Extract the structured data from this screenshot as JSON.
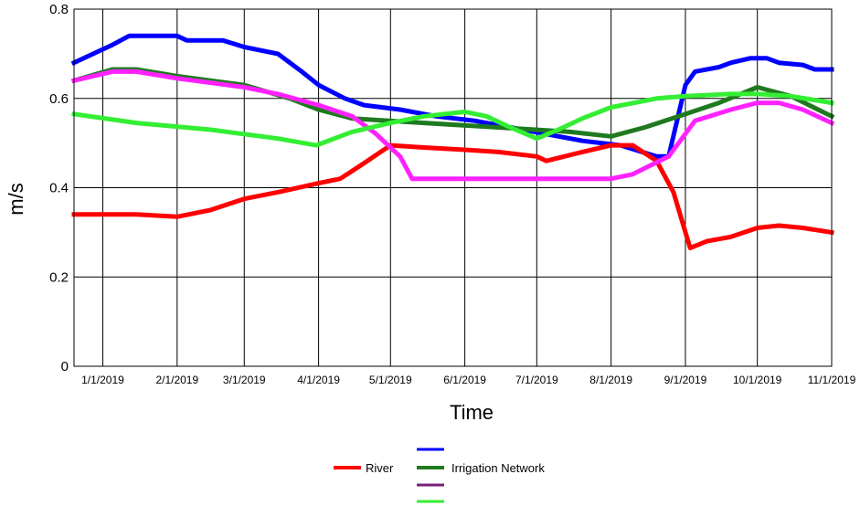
{
  "chart_data": {
    "type": "line",
    "xlabel": "Time",
    "ylabel": "m/s",
    "ylim": [
      0,
      0.8
    ],
    "xlim": [
      "2018-12-20",
      "2019-11-01"
    ],
    "yticks": [
      "0",
      "0.2",
      "0.4",
      "0.6",
      "0.8"
    ],
    "xticks": [
      "1/1/2019",
      "2/1/2019",
      "3/1/2019",
      "4/1/2019",
      "5/1/2019",
      "6/1/2019",
      "7/1/2019",
      "8/1/2019",
      "9/1/2019",
      "10/1/2019",
      "11/1/2019"
    ],
    "grid": true,
    "legend": {
      "placement": "bottom",
      "labels": [
        "River",
        "Irrigation Network"
      ]
    },
    "series": [
      {
        "color": "#0000ff",
        "points": [
          [
            "2018-12-20",
            0.68
          ],
          [
            "2018-12-28",
            0.7
          ],
          [
            "2019-01-05",
            0.72
          ],
          [
            "2019-01-12",
            0.74
          ],
          [
            "2019-02-01",
            0.74
          ],
          [
            "2019-02-05",
            0.73
          ],
          [
            "2019-02-20",
            0.73
          ],
          [
            "2019-03-01",
            0.715
          ],
          [
            "2019-03-15",
            0.7
          ],
          [
            "2019-03-25",
            0.66
          ],
          [
            "2019-04-01",
            0.63
          ],
          [
            "2019-04-12",
            0.6
          ],
          [
            "2019-04-20",
            0.585
          ],
          [
            "2019-05-05",
            0.575
          ],
          [
            "2019-05-20",
            0.56
          ],
          [
            "2019-06-05",
            0.55
          ],
          [
            "2019-06-20",
            0.535
          ],
          [
            "2019-07-05",
            0.52
          ],
          [
            "2019-07-20",
            0.505
          ],
          [
            "2019-08-05",
            0.495
          ],
          [
            "2019-08-20",
            0.47
          ],
          [
            "2019-08-25",
            0.47
          ],
          [
            "2019-09-01",
            0.63
          ],
          [
            "2019-09-05",
            0.66
          ],
          [
            "2019-09-15",
            0.67
          ],
          [
            "2019-09-20",
            0.68
          ],
          [
            "2019-09-28",
            0.69
          ],
          [
            "2019-10-05",
            0.69
          ],
          [
            "2019-10-10",
            0.68
          ],
          [
            "2019-10-20",
            0.675
          ],
          [
            "2019-10-25",
            0.665
          ],
          [
            "2019-11-01",
            0.665
          ]
        ]
      },
      {
        "color": "#ff0000",
        "points": [
          [
            "2018-12-20",
            0.34
          ],
          [
            "2019-01-01",
            0.34
          ],
          [
            "2019-01-15",
            0.34
          ],
          [
            "2019-02-01",
            0.335
          ],
          [
            "2019-02-15",
            0.35
          ],
          [
            "2019-03-01",
            0.375
          ],
          [
            "2019-03-15",
            0.39
          ],
          [
            "2019-04-01",
            0.41
          ],
          [
            "2019-04-10",
            0.42
          ],
          [
            "2019-04-20",
            0.455
          ],
          [
            "2019-05-01",
            0.495
          ],
          [
            "2019-05-15",
            0.49
          ],
          [
            "2019-06-01",
            0.485
          ],
          [
            "2019-06-15",
            0.48
          ],
          [
            "2019-07-01",
            0.47
          ],
          [
            "2019-07-05",
            0.46
          ],
          [
            "2019-07-20",
            0.48
          ],
          [
            "2019-08-01",
            0.495
          ],
          [
            "2019-08-10",
            0.495
          ],
          [
            "2019-08-20",
            0.46
          ],
          [
            "2019-08-27",
            0.39
          ],
          [
            "2019-09-01",
            0.3
          ],
          [
            "2019-09-03",
            0.265
          ],
          [
            "2019-09-10",
            0.28
          ],
          [
            "2019-09-20",
            0.29
          ],
          [
            "2019-10-01",
            0.31
          ],
          [
            "2019-10-10",
            0.315
          ],
          [
            "2019-10-20",
            0.31
          ],
          [
            "2019-11-01",
            0.3
          ]
        ]
      },
      {
        "color": "#1f7a1f",
        "points": [
          [
            "2018-12-20",
            0.64
          ],
          [
            "2019-01-05",
            0.665
          ],
          [
            "2019-01-15",
            0.665
          ],
          [
            "2019-02-01",
            0.65
          ],
          [
            "2019-03-01",
            0.63
          ],
          [
            "2019-03-20",
            0.6
          ],
          [
            "2019-04-01",
            0.575
          ],
          [
            "2019-04-15",
            0.555
          ],
          [
            "2019-05-15",
            0.545
          ],
          [
            "2019-06-15",
            0.535
          ],
          [
            "2019-07-15",
            0.525
          ],
          [
            "2019-08-01",
            0.515
          ],
          [
            "2019-08-15",
            0.535
          ],
          [
            "2019-09-01",
            0.565
          ],
          [
            "2019-09-15",
            0.59
          ],
          [
            "2019-10-01",
            0.625
          ],
          [
            "2019-10-15",
            0.605
          ],
          [
            "2019-11-01",
            0.56
          ]
        ]
      },
      {
        "color": "#ff22ff",
        "points": [
          [
            "2018-12-20",
            0.64
          ],
          [
            "2019-01-05",
            0.66
          ],
          [
            "2019-01-15",
            0.66
          ],
          [
            "2019-02-01",
            0.645
          ],
          [
            "2019-03-01",
            0.625
          ],
          [
            "2019-03-15",
            0.61
          ],
          [
            "2019-04-01",
            0.585
          ],
          [
            "2019-04-15",
            0.56
          ],
          [
            "2019-04-25",
            0.52
          ],
          [
            "2019-05-05",
            0.47
          ],
          [
            "2019-05-10",
            0.42
          ],
          [
            "2019-08-01",
            0.42
          ],
          [
            "2019-08-10",
            0.43
          ],
          [
            "2019-08-25",
            0.47
          ],
          [
            "2019-09-05",
            0.55
          ],
          [
            "2019-09-20",
            0.575
          ],
          [
            "2019-10-01",
            0.59
          ],
          [
            "2019-10-10",
            0.59
          ],
          [
            "2019-10-20",
            0.575
          ],
          [
            "2019-11-01",
            0.545
          ]
        ]
      },
      {
        "color": "#33ee33",
        "points": [
          [
            "2018-12-20",
            0.565
          ],
          [
            "2019-01-15",
            0.545
          ],
          [
            "2019-02-15",
            0.53
          ],
          [
            "2019-03-15",
            0.51
          ],
          [
            "2019-03-31",
            0.495
          ],
          [
            "2019-04-15",
            0.525
          ],
          [
            "2019-05-01",
            0.545
          ],
          [
            "2019-05-15",
            0.56
          ],
          [
            "2019-06-01",
            0.57
          ],
          [
            "2019-06-10",
            0.56
          ],
          [
            "2019-06-20",
            0.535
          ],
          [
            "2019-07-01",
            0.51
          ],
          [
            "2019-07-10",
            0.53
          ],
          [
            "2019-07-20",
            0.555
          ],
          [
            "2019-08-01",
            0.58
          ],
          [
            "2019-08-20",
            0.6
          ],
          [
            "2019-09-01",
            0.605
          ],
          [
            "2019-09-20",
            0.61
          ],
          [
            "2019-10-01",
            0.61
          ],
          [
            "2019-10-15",
            0.605
          ],
          [
            "2019-11-01",
            0.59
          ]
        ]
      }
    ]
  },
  "legend_colors": {
    "river": "#ff0000",
    "irrigation_network": "#1f7a1f",
    "swatches": [
      "#0000ff",
      "#7a1f7a",
      "#33ee33"
    ]
  }
}
